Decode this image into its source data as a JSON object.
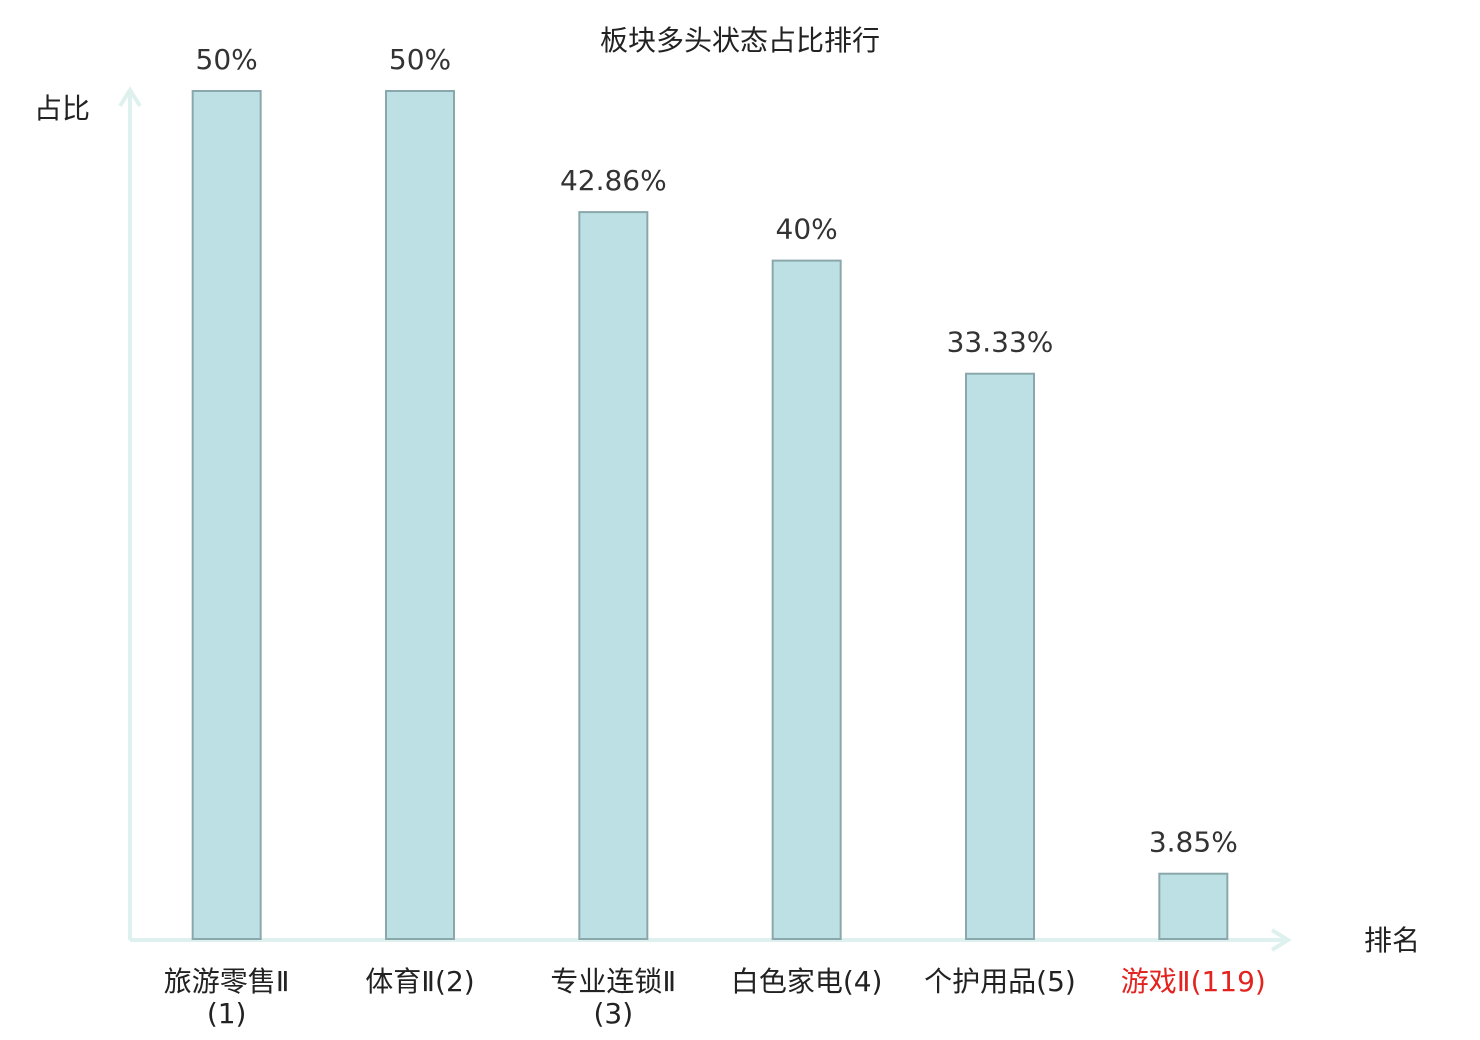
{
  "chart_data": {
    "type": "bar",
    "title": "板块多头状态占比排行",
    "y_label": "占比",
    "x_label": "排名",
    "categories": [
      "旅游零售Ⅱ(1)",
      "体育Ⅱ(2)",
      "专业连锁Ⅱ(3)",
      "白色家电(4)",
      "个护用品(5)",
      "游戏Ⅱ(119)"
    ],
    "values": [
      50,
      50,
      42.86,
      40,
      33.33,
      3.85
    ],
    "value_labels": [
      "50%",
      "50%",
      "42.86%",
      "40%",
      "33.33%",
      "3.85%"
    ],
    "color": "#bce0e3",
    "edge_color": "#8aa8ab",
    "label_colors": [
      "#222222",
      "#222222",
      "#222222",
      "#222222",
      "#222222",
      "#e3231f"
    ],
    "ylim": [
      0,
      50
    ]
  }
}
